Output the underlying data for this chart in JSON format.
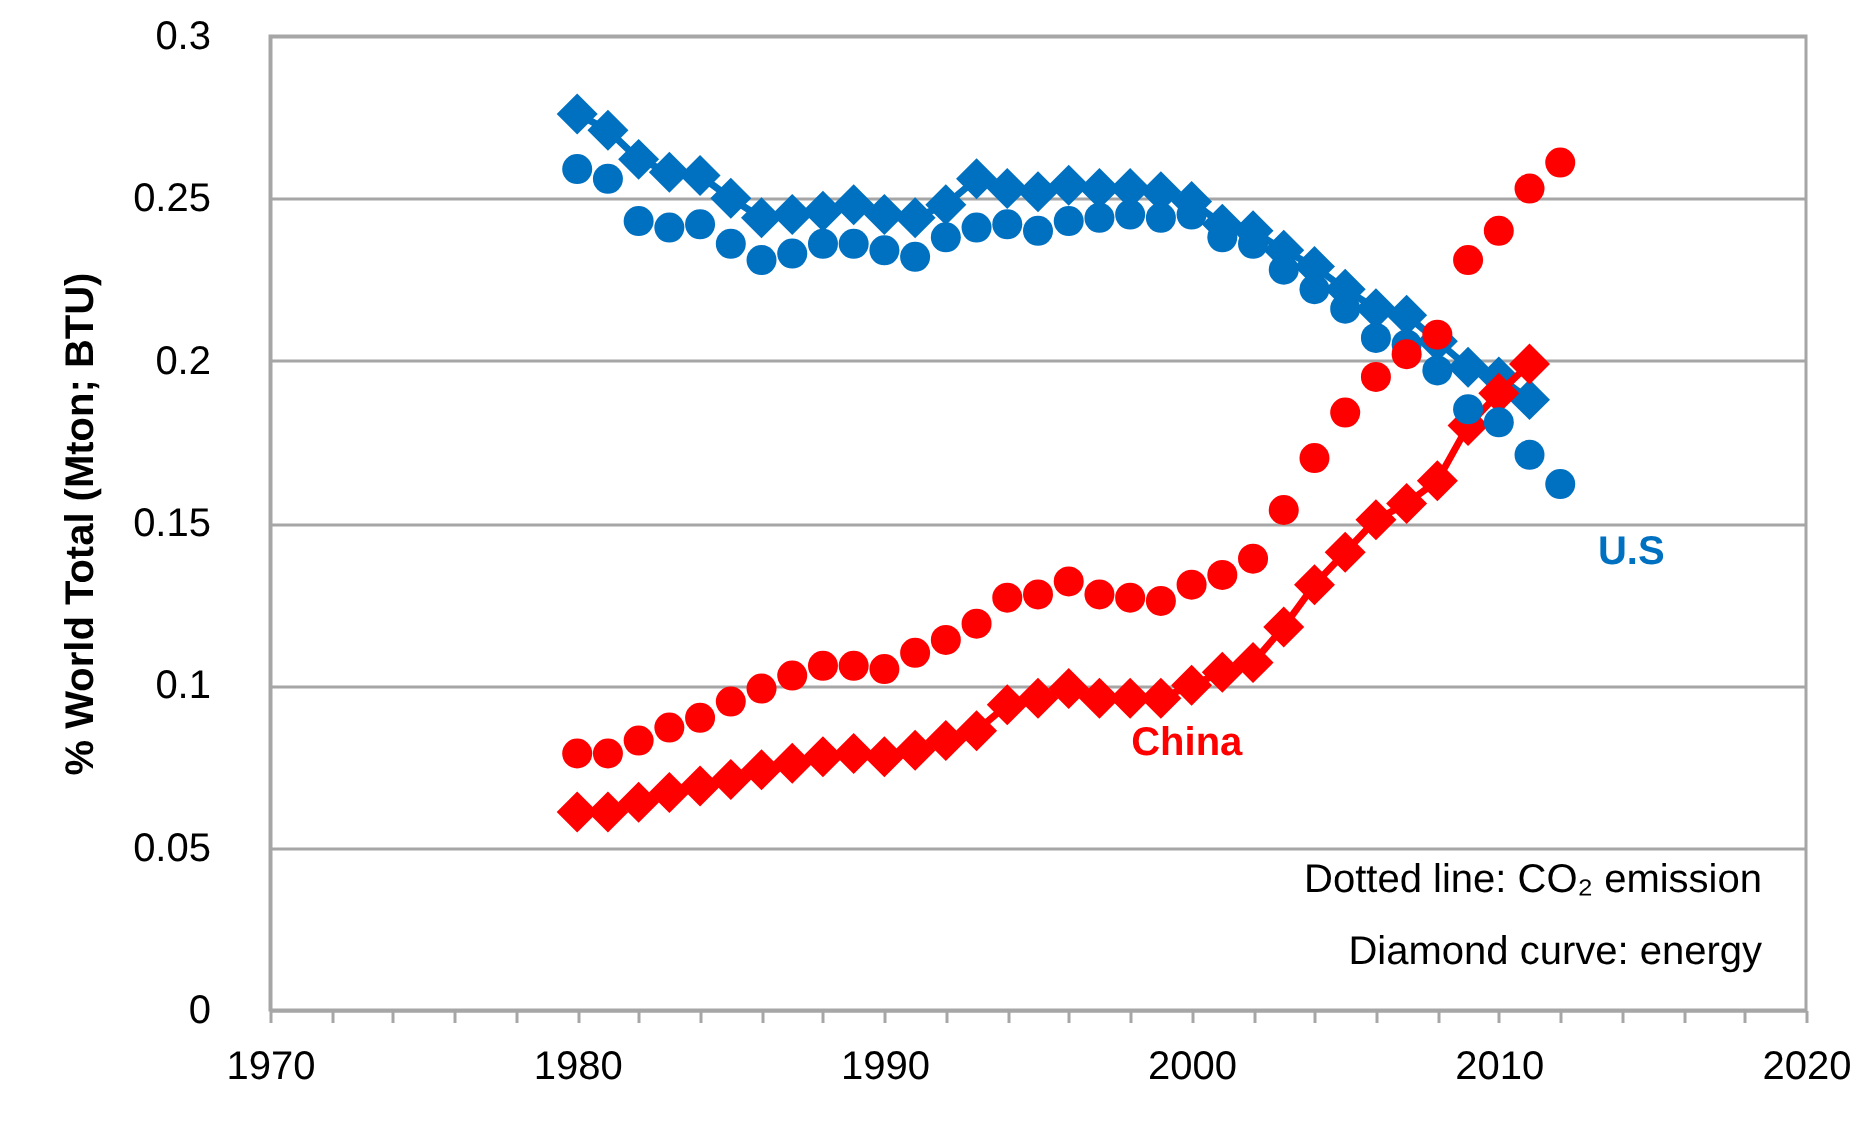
{
  "chart_data": {
    "type": "line",
    "ylabel": "% World Total (Mton; BTU)",
    "annotations": [
      "Dotted line: CO₂ emission",
      "Diamond curve: energy"
    ],
    "x": [
      1980,
      1981,
      1982,
      1983,
      1984,
      1985,
      1986,
      1987,
      1988,
      1989,
      1990,
      1991,
      1992,
      1993,
      1994,
      1995,
      1996,
      1997,
      1998,
      1999,
      2000,
      2001,
      2002,
      2003,
      2004,
      2005,
      2006,
      2007,
      2008,
      2009,
      2010,
      2011,
      2012
    ],
    "series": [
      {
        "marker": "diamond",
        "color": "#0070c0",
        "values": [
          0.276,
          0.271,
          0.262,
          0.258,
          0.257,
          0.25,
          0.244,
          0.245,
          0.246,
          0.248,
          0.245,
          0.244,
          0.248,
          0.256,
          0.253,
          0.252,
          0.254,
          0.253,
          0.253,
          0.252,
          0.249,
          0.242,
          0.24,
          0.234,
          0.229,
          0.222,
          0.216,
          0.214,
          0.206,
          0.198,
          0.195,
          0.188,
          null
        ]
      },
      {
        "name": "China",
        "marker": "diamond",
        "color": "#ff0000",
        "values": [
          0.061,
          0.061,
          0.064,
          0.067,
          0.069,
          0.071,
          0.074,
          0.076,
          0.078,
          0.079,
          0.078,
          0.08,
          0.083,
          0.086,
          0.094,
          0.096,
          0.099,
          0.096,
          0.096,
          0.096,
          0.1,
          0.104,
          0.107,
          0.118,
          0.131,
          0.141,
          0.151,
          0.156,
          0.163,
          0.18,
          0.19,
          0.199,
          null
        ]
      },
      {
        "name": "U.S",
        "type": "scatter",
        "marker": "circle",
        "color": "#0070c0",
        "values": [
          0.259,
          0.256,
          0.243,
          0.241,
          0.242,
          0.236,
          0.231,
          0.233,
          0.236,
          0.236,
          0.234,
          0.232,
          0.238,
          0.241,
          0.242,
          0.24,
          0.243,
          0.244,
          0.245,
          0.244,
          0.245,
          0.238,
          0.236,
          0.228,
          0.222,
          0.216,
          0.207,
          0.205,
          0.197,
          0.185,
          0.181,
          0.171,
          0.162
        ]
      },
      {
        "type": "scatter",
        "marker": "circle",
        "color": "#ff0000",
        "values": [
          0.079,
          0.079,
          0.083,
          0.087,
          0.09,
          0.095,
          0.099,
          0.103,
          0.106,
          0.106,
          0.105,
          0.11,
          0.114,
          0.119,
          0.127,
          0.128,
          0.132,
          0.128,
          0.127,
          0.126,
          0.131,
          0.134,
          0.139,
          0.154,
          0.17,
          0.184,
          0.195,
          0.202,
          0.208,
          0.231,
          0.24,
          0.253,
          0.261
        ]
      }
    ],
    "xlim": [
      1970,
      2020
    ],
    "ylim": [
      0,
      0.3
    ],
    "xticks": [
      1970,
      {
        "value": 1972,
        "label": null
      },
      {
        "value": 1974,
        "label": null
      },
      {
        "value": 1976,
        "label": null
      },
      {
        "value": 1978,
        "label": null
      },
      1980,
      {
        "value": 1982,
        "label": null
      },
      {
        "value": 1984,
        "label": null
      },
      {
        "value": 1986,
        "label": null
      },
      {
        "value": 1988,
        "label": null
      },
      1990,
      {
        "value": 1992,
        "label": null
      },
      {
        "value": 1994,
        "label": null
      },
      {
        "value": 1996,
        "label": null
      },
      {
        "value": 1998,
        "label": null
      },
      2000,
      {
        "value": 2002,
        "label": null
      },
      {
        "value": 2004,
        "label": null
      },
      {
        "value": 2006,
        "label": null
      },
      {
        "value": 2008,
        "label": null
      },
      2010,
      {
        "value": 2012,
        "label": null
      },
      {
        "value": 2014,
        "label": null
      },
      {
        "value": 2016,
        "label": null
      },
      {
        "value": 2018,
        "label": null
      },
      2020
    ],
    "yticks": [
      0,
      0.05,
      0.1,
      0.15,
      0.2,
      0.25,
      0.3
    ],
    "grid": "y"
  }
}
